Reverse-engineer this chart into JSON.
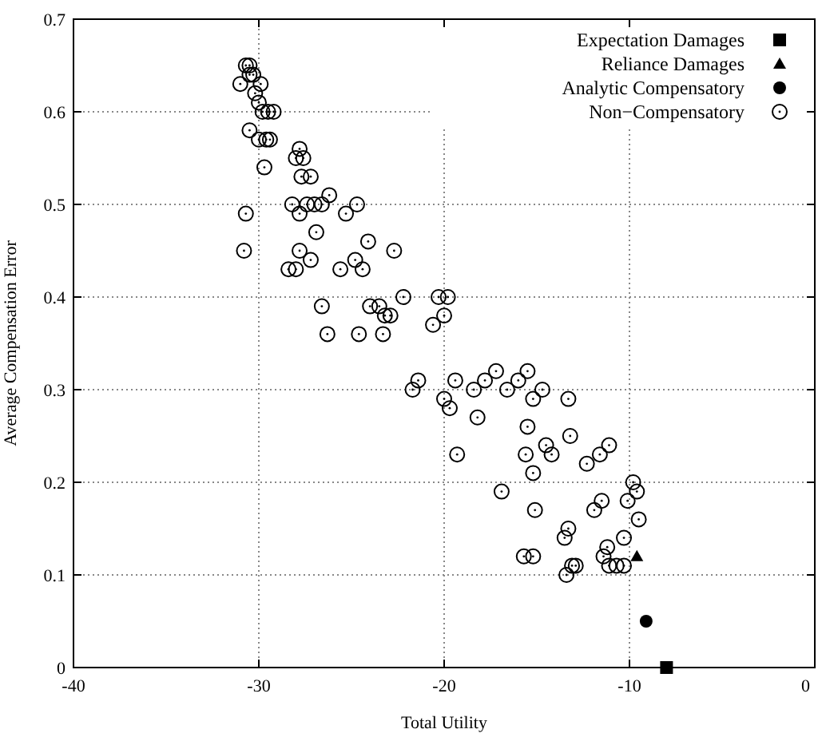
{
  "chart_data": {
    "type": "scatter",
    "xlabel": "Total Utility",
    "ylabel": "Average Compensation Error",
    "xlim": [
      -40,
      0
    ],
    "ylim": [
      0,
      0.7
    ],
    "xticks": [
      -40,
      -30,
      -20,
      -10,
      0
    ],
    "yticks": [
      0,
      0.1,
      0.2,
      0.3,
      0.4,
      0.5,
      0.6,
      0.7
    ],
    "grid": true,
    "legend": "top right",
    "series": [
      {
        "name": "Expectation Damages",
        "color": "#000000",
        "marker": "square",
        "x": [
          -8
        ],
        "values": [
          0
        ]
      },
      {
        "name": "Reliance Damages",
        "color": "#000000",
        "marker": "triangle",
        "x": [
          -9.6
        ],
        "values": [
          0.12
        ]
      },
      {
        "name": "Analytic Compensatory",
        "color": "#000000",
        "marker": "circle",
        "x": [
          -9.1
        ],
        "values": [
          0.05
        ]
      },
      {
        "name": "Non−Compensatory",
        "color": "#000000",
        "marker": "circle-open",
        "x": [
          -30.7,
          -30.5,
          -30.3,
          -30.5,
          -31,
          -30.2,
          -29.9,
          -30,
          -29.8,
          -29.5,
          -29.2,
          -29.6,
          -29.4,
          -30.5,
          -30,
          -29.7,
          -30.7,
          -30.8,
          -28,
          -27.8,
          -27.6,
          -27.7,
          -27.2,
          -27.4,
          -28.2,
          -27,
          -26.6,
          -26.2,
          -27.8,
          -27.2,
          -26.9,
          -28,
          -28.4,
          -27.8,
          -26.6,
          -26.3,
          -25.3,
          -24.7,
          -25.6,
          -24.8,
          -24.4,
          -24.1,
          -24,
          -24.6,
          -23.5,
          -23.2,
          -23.3,
          -22.9,
          -22.7,
          -22.2,
          -21.7,
          -21.4,
          -20.6,
          -20.3,
          -19.8,
          -20,
          -20,
          -19.4,
          -19.7,
          -19.3,
          -18.4,
          -18.2,
          -17.8,
          -17.2,
          -16.9,
          -16.6,
          -16,
          -15.5,
          -15.5,
          -15.2,
          -14.7,
          -15.6,
          -15.2,
          -14.2,
          -14.5,
          -13.3,
          -13.2,
          -15.1,
          -15.7,
          -15.2,
          -13.3,
          -13.5,
          -13.1,
          -13.4,
          -12.3,
          -11.6,
          -11.1,
          -12.9,
          -11.9,
          -11.5,
          -11.4,
          -11.2,
          -11.1,
          -10.7,
          -10.3,
          -10.1,
          -9.8,
          -9.6,
          -9.5,
          -10.3
        ],
        "values": [
          0.65,
          0.65,
          0.64,
          0.64,
          0.63,
          0.62,
          0.63,
          0.61,
          0.6,
          0.6,
          0.6,
          0.57,
          0.57,
          0.58,
          0.57,
          0.54,
          0.49,
          0.45,
          0.55,
          0.56,
          0.55,
          0.53,
          0.53,
          0.5,
          0.5,
          0.5,
          0.5,
          0.51,
          0.49,
          0.44,
          0.47,
          0.43,
          0.43,
          0.45,
          0.39,
          0.36,
          0.49,
          0.5,
          0.43,
          0.44,
          0.43,
          0.46,
          0.39,
          0.36,
          0.39,
          0.38,
          0.36,
          0.38,
          0.45,
          0.4,
          0.3,
          0.31,
          0.37,
          0.4,
          0.4,
          0.38,
          0.29,
          0.31,
          0.28,
          0.23,
          0.3,
          0.27,
          0.31,
          0.32,
          0.19,
          0.3,
          0.31,
          0.32,
          0.26,
          0.29,
          0.3,
          0.23,
          0.21,
          0.23,
          0.24,
          0.29,
          0.25,
          0.17,
          0.12,
          0.12,
          0.15,
          0.14,
          0.11,
          0.1,
          0.22,
          0.23,
          0.24,
          0.11,
          0.17,
          0.18,
          0.12,
          0.13,
          0.11,
          0.11,
          0.14,
          0.18,
          0.2,
          0.19,
          0.16,
          0.11
        ]
      }
    ]
  }
}
